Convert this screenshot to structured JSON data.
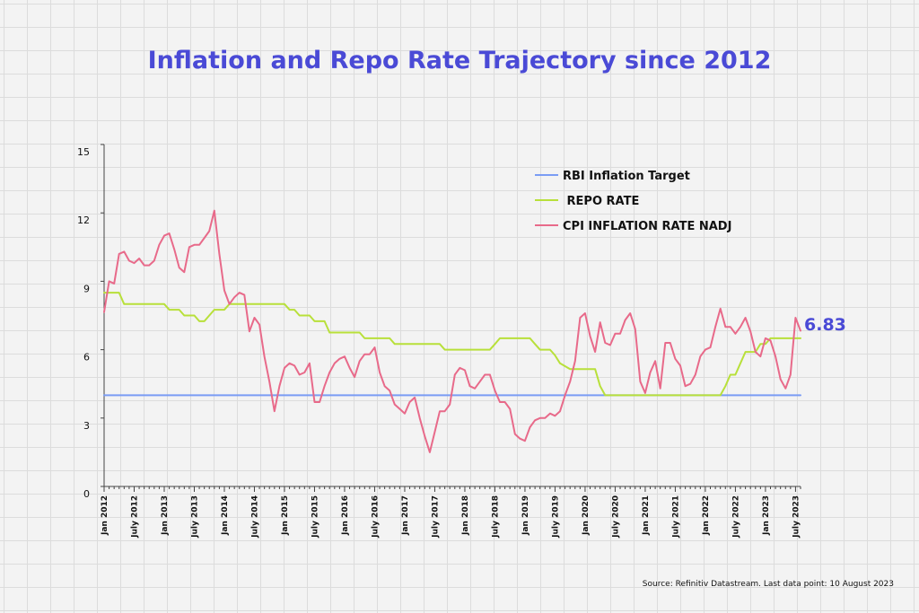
{
  "title": "Inflation and Repo Rate Trajectory since 2012",
  "source": "Source: Refinitiv Datastream. Last data point: 10 August 2023",
  "chart_data": {
    "type": "line",
    "title": "Inflation and Repo Rate Trajectory since 2012",
    "xlabel": "",
    "ylabel": "",
    "ylim": [
      0,
      15
    ],
    "yticks": [
      "0",
      "3",
      "6",
      "9",
      "12",
      "15"
    ],
    "xticks": [
      "Jan 2012",
      "July 2012",
      "Jan 2013",
      "July 2013",
      "Jan 2014",
      "July 2014",
      "Jan 2015",
      "July 2015",
      "Jan 2016",
      "July 2016",
      "Jan 2017",
      "July 2017",
      "Jan 2018",
      "July 2018",
      "Jan 2019",
      "July 2019",
      "Jan 2020",
      "July 2020",
      "Jan 2021",
      "July 2021",
      "Jan 2022",
      "July 2022",
      "Jan 2023",
      "July 2023"
    ],
    "x_range": [
      "2012-01",
      "2023-08"
    ],
    "grid": false,
    "legend_position": "top-right",
    "end_annotation": "6.83",
    "series": [
      {
        "name": "RBI Inflation Target",
        "color": "#7a9cf4",
        "points": [
          [
            "2012-01",
            4.0
          ],
          [
            "2023-08",
            4.0
          ]
        ]
      },
      {
        "name": "REPO RATE",
        "color": "#b8e03a",
        "points": [
          [
            "2012-01",
            8.5
          ],
          [
            "2012-04",
            8.5
          ],
          [
            "2012-05",
            8.0
          ],
          [
            "2013-01",
            8.0
          ],
          [
            "2013-02",
            7.75
          ],
          [
            "2013-04",
            7.75
          ],
          [
            "2013-05",
            7.5
          ],
          [
            "2013-07",
            7.5
          ],
          [
            "2013-08",
            7.25
          ],
          [
            "2013-09",
            7.25
          ],
          [
            "2013-10",
            7.5
          ],
          [
            "2013-11",
            7.75
          ],
          [
            "2014-01",
            7.75
          ],
          [
            "2014-02",
            8.0
          ],
          [
            "2015-01",
            8.0
          ],
          [
            "2015-02",
            7.75
          ],
          [
            "2015-03",
            7.75
          ],
          [
            "2015-04",
            7.5
          ],
          [
            "2015-06",
            7.5
          ],
          [
            "2015-07",
            7.25
          ],
          [
            "2015-09",
            7.25
          ],
          [
            "2015-10",
            6.75
          ],
          [
            "2016-04",
            6.75
          ],
          [
            "2016-05",
            6.5
          ],
          [
            "2016-10",
            6.5
          ],
          [
            "2016-11",
            6.25
          ],
          [
            "2017-08",
            6.25
          ],
          [
            "2017-09",
            6.0
          ],
          [
            "2018-06",
            6.0
          ],
          [
            "2018-07",
            6.25
          ],
          [
            "2018-08",
            6.5
          ],
          [
            "2019-02",
            6.5
          ],
          [
            "2019-03",
            6.25
          ],
          [
            "2019-04",
            6.0
          ],
          [
            "2019-06",
            6.0
          ],
          [
            "2019-07",
            5.75
          ],
          [
            "2019-08",
            5.4
          ],
          [
            "2019-10",
            5.15
          ],
          [
            "2020-03",
            5.15
          ],
          [
            "2020-04",
            4.4
          ],
          [
            "2020-05",
            4.0
          ],
          [
            "2022-04",
            4.0
          ],
          [
            "2022-05",
            4.4
          ],
          [
            "2022-06",
            4.9
          ],
          [
            "2022-07",
            4.9
          ],
          [
            "2022-08",
            5.4
          ],
          [
            "2022-09",
            5.9
          ],
          [
            "2022-11",
            5.9
          ],
          [
            "2022-12",
            6.25
          ],
          [
            "2023-01",
            6.25
          ],
          [
            "2023-02",
            6.5
          ],
          [
            "2023-08",
            6.5
          ]
        ]
      },
      {
        "name": "CPI INFLATION RATE NADJ",
        "color": "#e86a8a",
        "points": [
          [
            "2012-01",
            7.65
          ],
          [
            "2012-02",
            9.0
          ],
          [
            "2012-03",
            8.9
          ],
          [
            "2012-04",
            10.2
          ],
          [
            "2012-05",
            10.3
          ],
          [
            "2012-06",
            9.9
          ],
          [
            "2012-07",
            9.8
          ],
          [
            "2012-08",
            10.0
          ],
          [
            "2012-09",
            9.7
          ],
          [
            "2012-10",
            9.7
          ],
          [
            "2012-11",
            9.9
          ],
          [
            "2012-12",
            10.6
          ],
          [
            "2013-01",
            11.0
          ],
          [
            "2013-02",
            11.1
          ],
          [
            "2013-03",
            10.4
          ],
          [
            "2013-04",
            9.6
          ],
          [
            "2013-05",
            9.4
          ],
          [
            "2013-06",
            10.5
          ],
          [
            "2013-07",
            10.6
          ],
          [
            "2013-08",
            10.6
          ],
          [
            "2013-09",
            10.9
          ],
          [
            "2013-10",
            11.2
          ],
          [
            "2013-11",
            12.1
          ],
          [
            "2013-12",
            10.2
          ],
          [
            "2014-01",
            8.6
          ],
          [
            "2014-02",
            8.0
          ],
          [
            "2014-03",
            8.3
          ],
          [
            "2014-04",
            8.5
          ],
          [
            "2014-05",
            8.4
          ],
          [
            "2014-06",
            6.8
          ],
          [
            "2014-07",
            7.4
          ],
          [
            "2014-08",
            7.1
          ],
          [
            "2014-09",
            5.7
          ],
          [
            "2014-10",
            4.6
          ],
          [
            "2014-11",
            3.3
          ],
          [
            "2014-12",
            4.4
          ],
          [
            "2015-01",
            5.2
          ],
          [
            "2015-02",
            5.4
          ],
          [
            "2015-03",
            5.3
          ],
          [
            "2015-04",
            4.9
          ],
          [
            "2015-05",
            5.0
          ],
          [
            "2015-06",
            5.4
          ],
          [
            "2015-07",
            3.7
          ],
          [
            "2015-08",
            3.7
          ],
          [
            "2015-09",
            4.4
          ],
          [
            "2015-10",
            5.0
          ],
          [
            "2015-11",
            5.4
          ],
          [
            "2015-12",
            5.6
          ],
          [
            "2016-01",
            5.7
          ],
          [
            "2016-02",
            5.2
          ],
          [
            "2016-03",
            4.8
          ],
          [
            "2016-04",
            5.5
          ],
          [
            "2016-05",
            5.8
          ],
          [
            "2016-06",
            5.8
          ],
          [
            "2016-07",
            6.1
          ],
          [
            "2016-08",
            5.0
          ],
          [
            "2016-09",
            4.4
          ],
          [
            "2016-10",
            4.2
          ],
          [
            "2016-11",
            3.6
          ],
          [
            "2016-12",
            3.4
          ],
          [
            "2017-01",
            3.2
          ],
          [
            "2017-02",
            3.7
          ],
          [
            "2017-03",
            3.9
          ],
          [
            "2017-04",
            3.0
          ],
          [
            "2017-05",
            2.2
          ],
          [
            "2017-06",
            1.5
          ],
          [
            "2017-07",
            2.4
          ],
          [
            "2017-08",
            3.3
          ],
          [
            "2017-09",
            3.3
          ],
          [
            "2017-10",
            3.6
          ],
          [
            "2017-11",
            4.9
          ],
          [
            "2017-12",
            5.2
          ],
          [
            "2018-01",
            5.1
          ],
          [
            "2018-02",
            4.4
          ],
          [
            "2018-03",
            4.3
          ],
          [
            "2018-04",
            4.6
          ],
          [
            "2018-05",
            4.9
          ],
          [
            "2018-06",
            4.9
          ],
          [
            "2018-07",
            4.2
          ],
          [
            "2018-08",
            3.7
          ],
          [
            "2018-09",
            3.7
          ],
          [
            "2018-10",
            3.4
          ],
          [
            "2018-11",
            2.3
          ],
          [
            "2018-12",
            2.1
          ],
          [
            "2019-01",
            2.0
          ],
          [
            "2019-02",
            2.6
          ],
          [
            "2019-03",
            2.9
          ],
          [
            "2019-04",
            3.0
          ],
          [
            "2019-05",
            3.0
          ],
          [
            "2019-06",
            3.2
          ],
          [
            "2019-07",
            3.1
          ],
          [
            "2019-08",
            3.3
          ],
          [
            "2019-09",
            4.0
          ],
          [
            "2019-10",
            4.6
          ],
          [
            "2019-11",
            5.5
          ],
          [
            "2019-12",
            7.4
          ],
          [
            "2020-01",
            7.6
          ],
          [
            "2020-02",
            6.6
          ],
          [
            "2020-03",
            5.9
          ],
          [
            "2020-04",
            7.2
          ],
          [
            "2020-05",
            6.3
          ],
          [
            "2020-06",
            6.2
          ],
          [
            "2020-07",
            6.7
          ],
          [
            "2020-08",
            6.7
          ],
          [
            "2020-09",
            7.3
          ],
          [
            "2020-10",
            7.6
          ],
          [
            "2020-11",
            6.9
          ],
          [
            "2020-12",
            4.6
          ],
          [
            "2021-01",
            4.1
          ],
          [
            "2021-02",
            5.0
          ],
          [
            "2021-03",
            5.5
          ],
          [
            "2021-04",
            4.3
          ],
          [
            "2021-05",
            6.3
          ],
          [
            "2021-06",
            6.3
          ],
          [
            "2021-07",
            5.6
          ],
          [
            "2021-08",
            5.3
          ],
          [
            "2021-09",
            4.4
          ],
          [
            "2021-10",
            4.5
          ],
          [
            "2021-11",
            4.9
          ],
          [
            "2021-12",
            5.7
          ],
          [
            "2022-01",
            6.0
          ],
          [
            "2022-02",
            6.1
          ],
          [
            "2022-03",
            7.0
          ],
          [
            "2022-04",
            7.8
          ],
          [
            "2022-05",
            7.0
          ],
          [
            "2022-06",
            7.0
          ],
          [
            "2022-07",
            6.7
          ],
          [
            "2022-08",
            7.0
          ],
          [
            "2022-09",
            7.4
          ],
          [
            "2022-10",
            6.8
          ],
          [
            "2022-11",
            5.9
          ],
          [
            "2022-12",
            5.7
          ],
          [
            "2023-01",
            6.5
          ],
          [
            "2023-02",
            6.4
          ],
          [
            "2023-03",
            5.7
          ],
          [
            "2023-04",
            4.7
          ],
          [
            "2023-05",
            4.3
          ],
          [
            "2023-06",
            4.9
          ],
          [
            "2023-07",
            7.4
          ],
          [
            "2023-08",
            6.83
          ]
        ]
      }
    ]
  }
}
